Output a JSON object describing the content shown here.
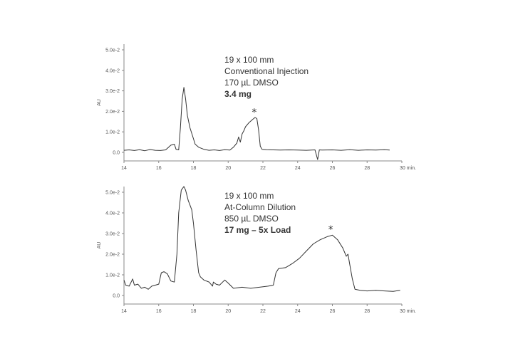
{
  "chart_data": [
    {
      "type": "line",
      "title": "",
      "xlabel": "min.",
      "ylabel": "AU",
      "xlim": [
        14,
        30
      ],
      "ylim": [
        -0.004,
        0.053
      ],
      "x_ticks": [
        14,
        16,
        18,
        20,
        22,
        24,
        26,
        28,
        30
      ],
      "x_tick_labels": [
        "14",
        "16",
        "18",
        "20",
        "22",
        "24",
        "26",
        "28",
        "30 min."
      ],
      "y_ticks": [
        0.0,
        0.01,
        0.02,
        0.03,
        0.04,
        0.05
      ],
      "y_tick_labels": [
        "0.0",
        "1.0e-2",
        "2.0e-2",
        "3.0e-2",
        "4.0e-2",
        "5.0e-2"
      ],
      "grid": false,
      "annotation": [
        "19 x 100 mm",
        "Conventional Injection",
        "170 µL DMSO",
        "3.4 mg"
      ],
      "peak_marker": {
        "label": "*",
        "x": 21.5,
        "y": 0.0185
      },
      "series": [
        {
          "name": "Conventional Injection",
          "x": [
            14.0,
            14.3,
            14.6,
            14.9,
            15.2,
            15.5,
            15.8,
            16.1,
            16.4,
            16.7,
            16.9,
            17.0,
            17.15,
            17.25,
            17.35,
            17.45,
            17.55,
            17.65,
            17.8,
            17.95,
            18.1,
            18.3,
            18.6,
            18.9,
            19.2,
            19.5,
            19.8,
            20.1,
            20.3,
            20.5,
            20.6,
            20.7,
            20.8,
            20.9,
            21.0,
            21.2,
            21.4,
            21.55,
            21.65,
            21.75,
            21.85,
            21.95,
            22.2,
            22.6,
            23.0,
            23.5,
            24.0,
            24.5,
            25.0,
            25.15,
            25.25,
            25.4,
            26.0,
            26.5,
            27.0,
            27.5,
            28.0,
            28.5,
            29.0,
            29.3
          ],
          "y": [
            0.001,
            0.0012,
            0.0009,
            0.0013,
            0.0008,
            0.0014,
            0.001,
            0.0009,
            0.0012,
            0.0035,
            0.004,
            0.0015,
            0.0012,
            0.012,
            0.026,
            0.0317,
            0.026,
            0.018,
            0.012,
            0.008,
            0.004,
            0.0025,
            0.0015,
            0.001,
            0.0012,
            0.0009,
            0.0013,
            0.0011,
            0.0025,
            0.0045,
            0.0075,
            0.005,
            0.009,
            0.0105,
            0.0125,
            0.0145,
            0.016,
            0.017,
            0.0165,
            0.011,
            0.003,
            0.0015,
            0.0013,
            0.0012,
            0.0011,
            0.0012,
            0.0011,
            0.001,
            0.0012,
            -0.0035,
            0.0012,
            0.0011,
            0.0012,
            0.001,
            0.0013,
            0.001,
            0.0012,
            0.0011,
            0.0013,
            0.0011
          ]
        }
      ]
    },
    {
      "type": "line",
      "title": "",
      "xlabel": "min.",
      "ylabel": "AU",
      "xlim": [
        14,
        30
      ],
      "ylim": [
        -0.004,
        0.053
      ],
      "x_ticks": [
        14,
        16,
        18,
        20,
        22,
        24,
        26,
        28,
        30
      ],
      "x_tick_labels": [
        "14",
        "16",
        "18",
        "20",
        "22",
        "24",
        "26",
        "28",
        "30 min."
      ],
      "y_ticks": [
        0.0,
        0.01,
        0.02,
        0.03,
        0.04,
        0.05
      ],
      "y_tick_labels": [
        "0.0",
        "1.0e-2",
        "2.0e-2",
        "3.0e-2",
        "4.0e-2",
        "5.0e-2"
      ],
      "grid": false,
      "annotation": [
        "19 x 100 mm",
        "At-Column Dilution",
        "850 µL DMSO",
        "17 mg – 5x Load"
      ],
      "peak_marker": {
        "label": "*",
        "x": 25.9,
        "y": 0.031
      },
      "series": [
        {
          "name": "At-Column Dilution",
          "x": [
            14.0,
            14.1,
            14.3,
            14.5,
            14.6,
            14.8,
            15.0,
            15.2,
            15.4,
            15.6,
            15.8,
            16.0,
            16.15,
            16.3,
            16.5,
            16.7,
            16.9,
            17.05,
            17.15,
            17.3,
            17.45,
            17.55,
            17.7,
            17.9,
            18.0,
            18.15,
            18.3,
            18.4,
            18.6,
            18.9,
            19.1,
            19.15,
            19.3,
            19.5,
            19.8,
            20.0,
            20.3,
            20.8,
            21.3,
            21.8,
            22.3,
            22.6,
            22.75,
            22.9,
            23.3,
            23.7,
            24.1,
            24.5,
            24.9,
            25.3,
            25.7,
            26.0,
            26.3,
            26.6,
            26.8,
            26.9,
            27.0,
            27.15,
            27.3,
            27.6,
            28.0,
            28.5,
            29.0,
            29.5,
            29.9
          ],
          "y": [
            0.0075,
            0.005,
            0.0045,
            0.008,
            0.005,
            0.0055,
            0.0035,
            0.004,
            0.003,
            0.0045,
            0.005,
            0.0055,
            0.011,
            0.0115,
            0.0105,
            0.007,
            0.0065,
            0.02,
            0.04,
            0.051,
            0.0528,
            0.051,
            0.046,
            0.0415,
            0.035,
            0.022,
            0.011,
            0.009,
            0.0075,
            0.0065,
            0.0045,
            0.0065,
            0.0055,
            0.005,
            0.0075,
            0.006,
            0.0035,
            0.004,
            0.0035,
            0.004,
            0.0045,
            0.005,
            0.011,
            0.013,
            0.0135,
            0.0155,
            0.018,
            0.0215,
            0.025,
            0.027,
            0.0285,
            0.0292,
            0.027,
            0.023,
            0.019,
            0.02,
            0.015,
            0.008,
            0.003,
            0.0025,
            0.0022,
            0.0025,
            0.0022,
            0.002,
            0.0025
          ]
        }
      ]
    }
  ]
}
